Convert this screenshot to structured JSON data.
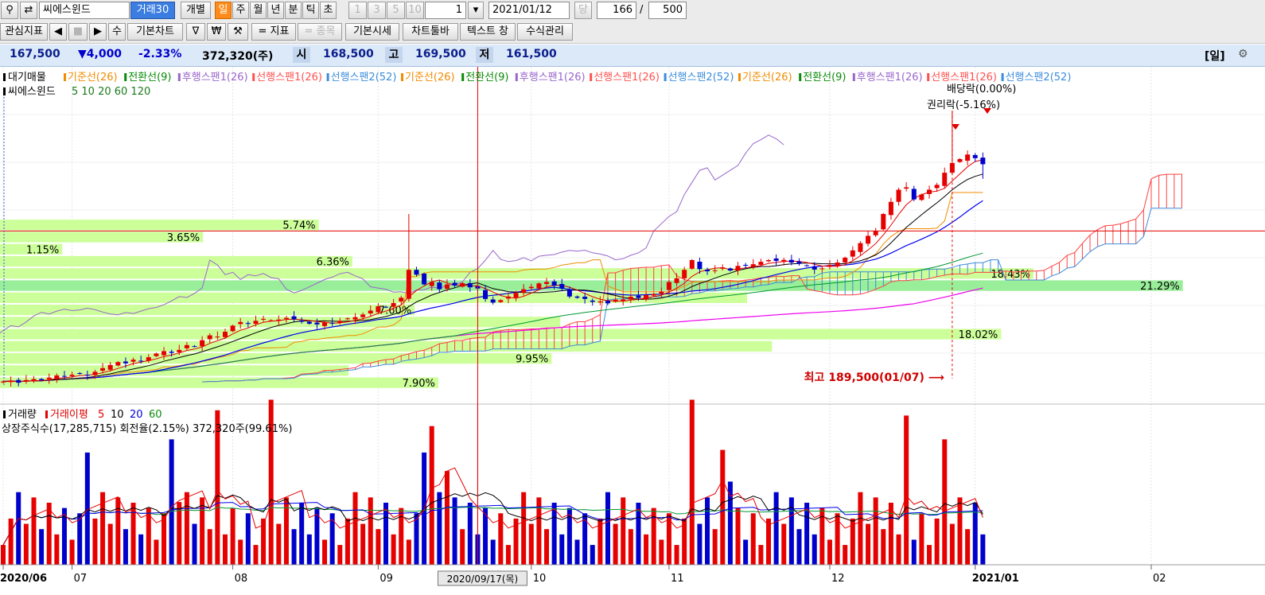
{
  "toolbar": {
    "stock_name": "씨에스윈드",
    "volume_btn": "거래30",
    "individual": "개별",
    "periods": [
      "일",
      "주",
      "월",
      "년",
      "분",
      "틱",
      "초"
    ],
    "active_period": "일",
    "nums": [
      "1",
      "3",
      "5",
      "10"
    ],
    "spinner_value": "1",
    "date": "2021/01/12",
    "dang": "당",
    "count": "166",
    "slash": "/",
    "total": "500"
  },
  "toolbar2": {
    "interest": "관심지표",
    "su": "수",
    "basic_chart": "기본차트",
    "won": "₩",
    "indicator": "= 지표",
    "stock": "= 종목",
    "basic_price": "기본시세",
    "chart_toolbar": "차트툴바",
    "text_window": "텍스트 창",
    "formula": "수식관리"
  },
  "quote": {
    "price": "167,500",
    "change": "▼4,000",
    "rate": "-2.33%",
    "volume": "372,320(주)",
    "open_label": "시",
    "open": "168,500",
    "high_label": "고",
    "high": "169,500",
    "low_label": "저",
    "low": "161,500",
    "period_tag": "[일]"
  },
  "legend": {
    "price_head": "대기매물",
    "price_items": [
      {
        "text": "기준선(26)",
        "color": "#f08c00"
      },
      {
        "text": "전환선(9)",
        "color": "#0a8c0a"
      },
      {
        "text": "후행스팬1(26)",
        "color": "#9966cc"
      },
      {
        "text": "선행스팬1(26)",
        "color": "#ff5050"
      },
      {
        "text": "선행스팬2(52)",
        "color": "#3c8cdc"
      },
      {
        "text": "기준선(26)",
        "color": "#f08c00"
      },
      {
        "text": "전환선(9)",
        "color": "#0a8c0a"
      },
      {
        "text": "후행스팬1(26)",
        "color": "#9966cc"
      },
      {
        "text": "선행스팬1(26)",
        "color": "#ff5050"
      },
      {
        "text": "선행스팬2(52)",
        "color": "#3c8cdc"
      },
      {
        "text": "기준선(26)",
        "color": "#f08c00"
      },
      {
        "text": "전환선(9)",
        "color": "#0a8c0a"
      },
      {
        "text": "후행스팬1(26)",
        "color": "#9966cc"
      },
      {
        "text": "선행스팬1(26)",
        "color": "#ff5050"
      },
      {
        "text": "선행스팬2(52)",
        "color": "#3c8cdc"
      }
    ],
    "ma_head": "씨에스윈드",
    "ma_values": "5 10 20 60 120",
    "vol_items": [
      {
        "text": "거래량",
        "color": "#000000"
      },
      {
        "text": "거래이평",
        "color": "#e00000"
      },
      {
        "text": "5",
        "color": "#e00000"
      },
      {
        "text": "10",
        "color": "#000000"
      },
      {
        "text": "20",
        "color": "#0000e0"
      },
      {
        "text": "60",
        "color": "#0a8c0a"
      }
    ],
    "listed_info": "상장주식수(17,285,715) 회전율(2.15%) 372,320주(99.61%)"
  },
  "annotations": {
    "dividend": "배당락(0.00%)",
    "rights": "권리락(-5.16%)",
    "max_label": "최고 189,500(01/07)"
  },
  "colors": {
    "up": "#e60000",
    "down": "#0000cc",
    "vp": "#ccff99",
    "vp_peak": "#99ee99",
    "ma5": "#e60000",
    "ma10": "#000000",
    "ma20": "#0000ee",
    "ma60": "#009933",
    "ma120": "#ee00ee",
    "kijun": "#f08c00",
    "lagging": "#9966cc",
    "cloud_up": "#ff4040",
    "cloud_dn": "#3c8cdc",
    "crosshair": "#e60000"
  },
  "chart_data": {
    "type": "candlestick",
    "ylim": [
      70000,
      205000
    ],
    "crosshair": {
      "date": "2020/09/17(목)",
      "price": 140000
    },
    "max_date": "01/07",
    "x_ticks": [
      {
        "label": "2020/06",
        "bold": true,
        "index": 0
      },
      {
        "label": "07",
        "index": 9
      },
      {
        "label": "08",
        "index": 30
      },
      {
        "label": "09",
        "index": 49
      },
      {
        "label": "10",
        "index": 69
      },
      {
        "label": "11",
        "index": 87
      },
      {
        "label": "12",
        "index": 108
      },
      {
        "label": "2021/01",
        "bold": true,
        "index": 127
      },
      {
        "label": "02",
        "index": 150
      }
    ],
    "volume_profile": [
      {
        "lo": 75000,
        "hi": 80000,
        "pct": "7.90%",
        "len": 0.352
      },
      {
        "lo": 80000,
        "hi": 85000,
        "pct": "",
        "len": 0.28
      },
      {
        "lo": 85000,
        "hi": 90000,
        "pct": "9.95%",
        "len": 0.443
      },
      {
        "lo": 90000,
        "hi": 95000,
        "pct": "",
        "len": 0.62
      },
      {
        "lo": 95000,
        "hi": 100000,
        "pct": "18.02%",
        "len": 0.804
      },
      {
        "lo": 100000,
        "hi": 105000,
        "pct": "",
        "len": 0.45
      },
      {
        "lo": 105000,
        "hi": 110000,
        "pct": "7.60%",
        "len": 0.333
      },
      {
        "lo": 110000,
        "hi": 115000,
        "pct": "",
        "len": 0.6
      },
      {
        "lo": 115000,
        "hi": 120000,
        "pct": "21.29%",
        "len": 0.95,
        "peak": true
      },
      {
        "lo": 120000,
        "hi": 125000,
        "pct": "18.43%",
        "len": 0.83
      },
      {
        "lo": 125000,
        "hi": 130000,
        "pct": "6.36%",
        "len": 0.283
      },
      {
        "lo": 130000,
        "hi": 135000,
        "pct": "1.15%",
        "len": 0.05
      },
      {
        "lo": 135000,
        "hi": 140000,
        "pct": "3.65%",
        "len": 0.163
      },
      {
        "lo": 140000,
        "hi": 145000,
        "pct": "5.74%",
        "len": 0.256
      }
    ],
    "close": [
      78000,
      78400,
      77500,
      78600,
      79000,
      78500,
      79600,
      80500,
      80000,
      80800,
      81200,
      80600,
      82000,
      83500,
      84800,
      86000,
      85500,
      87000,
      86500,
      88000,
      89500,
      90500,
      89800,
      91000,
      93000,
      92500,
      95000,
      97000,
      96500,
      98500,
      101000,
      102500,
      101800,
      103000,
      103800,
      103200,
      103500,
      104200,
      103600,
      102600,
      101800,
      101500,
      102400,
      102000,
      103000,
      104000,
      104500,
      105600,
      107200,
      109000,
      108600,
      110300,
      112500,
      124000,
      122000,
      118000,
      119000,
      116000,
      118000,
      117500,
      118500,
      116800,
      116300,
      112000,
      110500,
      111500,
      113000,
      114500,
      116000,
      117000,
      118400,
      119000,
      117500,
      116300,
      113000,
      112500,
      112000,
      110800,
      111000,
      110200,
      111700,
      111800,
      112900,
      112400,
      113600,
      114000,
      115000,
      119000,
      120500,
      124000,
      128000,
      124300,
      123400,
      123800,
      125000,
      123700,
      125600,
      126000,
      126300,
      127300,
      128000,
      127700,
      128100,
      127000,
      126500,
      125700,
      124100,
      124600,
      126000,
      127000,
      129000,
      132000,
      135000,
      138000,
      140000,
      147000,
      152000,
      157000,
      158000,
      153000,
      155000,
      157000,
      159000,
      164000,
      168000,
      169600,
      171500,
      170000,
      167500
    ],
    "volume_base": 1
  }
}
